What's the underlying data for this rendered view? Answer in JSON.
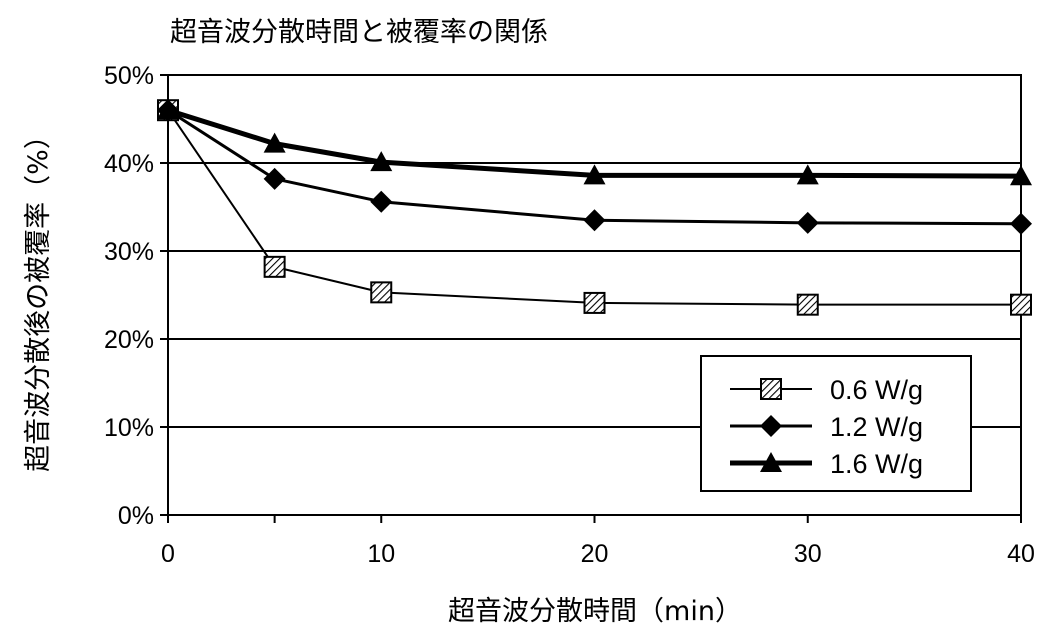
{
  "chart_data": {
    "type": "line",
    "title": "超音波分散時間と被覆率の関係",
    "xlabel": "超音波分散時間（min）",
    "ylabel": "超音波分散後の被覆率（%）",
    "x": [
      0,
      5,
      10,
      20,
      30,
      40
    ],
    "xlim": [
      0,
      40
    ],
    "ylim": [
      0,
      50
    ],
    "xticks": [
      "0",
      "10",
      "20",
      "30",
      "40"
    ],
    "yticks": [
      "0%",
      "10%",
      "20%",
      "30%",
      "40%",
      "50%"
    ],
    "grid": "horizontal",
    "legend_position": "bottom-right",
    "series": [
      {
        "name": "0.6 W/g",
        "marker": "hatched-square",
        "values": [
          46,
          28.2,
          25.3,
          24.1,
          23.9,
          23.9
        ]
      },
      {
        "name": "1.2 W/g",
        "marker": "diamond",
        "values": [
          46,
          38.2,
          35.6,
          33.5,
          33.2,
          33.1
        ]
      },
      {
        "name": "1.6 W/g",
        "marker": "triangle",
        "values": [
          46,
          42.2,
          40.1,
          38.6,
          38.6,
          38.5
        ]
      }
    ],
    "line_color": "#000000"
  }
}
